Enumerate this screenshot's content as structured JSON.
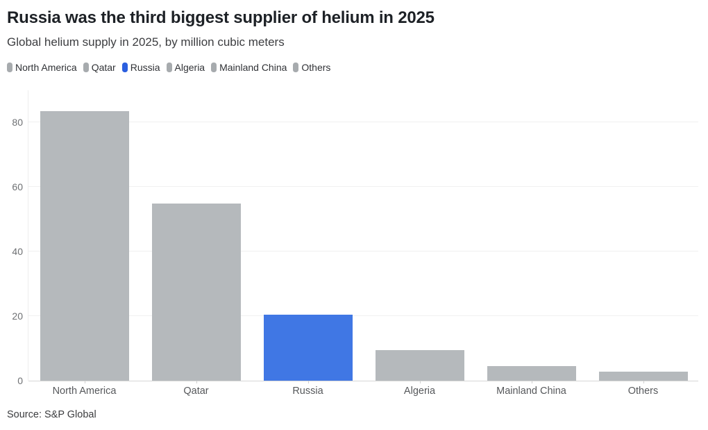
{
  "header": {
    "title": "Russia was the third biggest supplier of helium in 2025",
    "subtitle": "Global helium supply in 2025, by million cubic meters"
  },
  "legend": {
    "items": [
      {
        "label": "North America",
        "color": "#a7abae"
      },
      {
        "label": "Qatar",
        "color": "#a7abae"
      },
      {
        "label": "Russia",
        "color": "#2b5fdf"
      },
      {
        "label": "Algeria",
        "color": "#a7abae"
      },
      {
        "label": "Mainland China",
        "color": "#a7abae"
      },
      {
        "label": "Others",
        "color": "#a7abae"
      }
    ]
  },
  "chart_data": {
    "type": "bar",
    "title": "Russia was the third biggest supplier of helium in 2025",
    "subtitle": "Global helium supply in 2025, by million cubic meters",
    "categories": [
      "North America",
      "Qatar",
      "Russia",
      "Algeria",
      "Mainland China",
      "Others"
    ],
    "values": [
      83.5,
      55,
      20.5,
      9.5,
      4.5,
      2.9
    ],
    "bar_colors": [
      "#b5b9bc",
      "#b5b9bc",
      "#4077e4",
      "#b5b9bc",
      "#b5b9bc",
      "#b5b9bc"
    ],
    "xlabel": "",
    "ylabel": "",
    "yticks": [
      0,
      20,
      40,
      60,
      80
    ],
    "ylim": [
      0,
      90
    ],
    "grid": "horizontal",
    "legend_position": "top",
    "units": "million cubic meters"
  },
  "colors": {
    "accent_blue_bar": "#4077e4",
    "accent_blue_marker": "#2b5fdf",
    "gray_bar": "#b5b9bc",
    "gridline": "#f0f0f0",
    "axis_line": "#d7d7d7"
  },
  "footer": {
    "source": "Source: S&P Global"
  }
}
